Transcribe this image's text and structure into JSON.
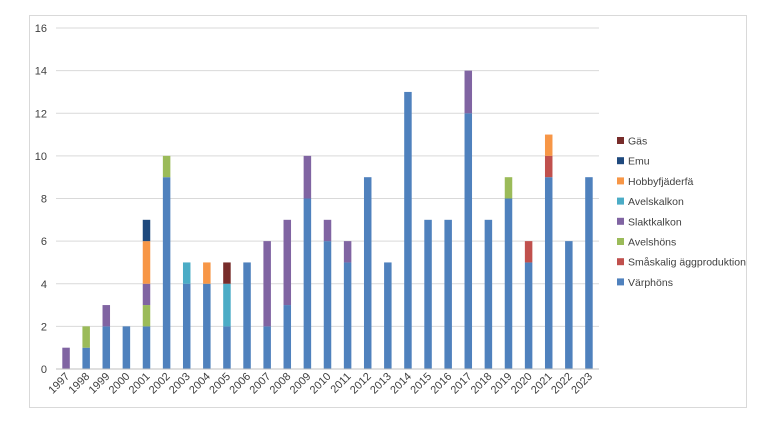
{
  "chart_data": {
    "type": "bar",
    "stacked": true,
    "categories": [
      "1997",
      "1998",
      "1999",
      "2000",
      "2001",
      "2002",
      "2003",
      "2004",
      "2005",
      "2006",
      "2007",
      "2008",
      "2009",
      "2010",
      "2011",
      "2012",
      "2013",
      "2014",
      "2015",
      "2016",
      "2017",
      "2018",
      "2019",
      "2020",
      "2021",
      "2022",
      "2023"
    ],
    "ylim": [
      0,
      16
    ],
    "yticks": [
      "0",
      "2",
      "4",
      "6",
      "8",
      "10",
      "12",
      "14",
      "16"
    ],
    "grid": true,
    "legend_position": "right",
    "series": [
      {
        "name": "Värphöns",
        "color": "#4f81bd",
        "values": [
          0,
          1,
          2,
          2,
          2,
          9,
          4,
          4,
          2,
          5,
          2,
          3,
          8,
          6,
          5,
          9,
          5,
          13,
          7,
          7,
          12,
          7,
          8,
          5,
          9,
          6,
          9
        ]
      },
      {
        "name": "Småskalig äggproduktion",
        "color": "#c0504d",
        "values": [
          0,
          0,
          0,
          0,
          0,
          0,
          0,
          0,
          0,
          0,
          0,
          0,
          0,
          0,
          0,
          0,
          0,
          0,
          0,
          0,
          0,
          0,
          0,
          1,
          1,
          0,
          0
        ]
      },
      {
        "name": "Avelshöns",
        "color": "#9bbb59",
        "values": [
          0,
          1,
          0,
          0,
          1,
          1,
          0,
          0,
          0,
          0,
          0,
          0,
          0,
          0,
          0,
          0,
          0,
          0,
          0,
          0,
          0,
          0,
          1,
          0,
          0,
          0,
          0
        ]
      },
      {
        "name": "Slaktkalkon",
        "color": "#8064a2",
        "values": [
          1,
          0,
          1,
          0,
          1,
          0,
          0,
          0,
          0,
          0,
          4,
          4,
          2,
          1,
          1,
          0,
          0,
          0,
          0,
          0,
          2,
          0,
          0,
          0,
          0,
          0,
          0
        ]
      },
      {
        "name": "Avelskalkon",
        "color": "#4bacc6",
        "values": [
          0,
          0,
          0,
          0,
          0,
          0,
          1,
          0,
          2,
          0,
          0,
          0,
          0,
          0,
          0,
          0,
          0,
          0,
          0,
          0,
          0,
          0,
          0,
          0,
          0,
          0,
          0
        ]
      },
      {
        "name": "Hobbyfjäderfä",
        "color": "#f79646",
        "values": [
          0,
          0,
          0,
          0,
          2,
          0,
          0,
          1,
          0,
          0,
          0,
          0,
          0,
          0,
          0,
          0,
          0,
          0,
          0,
          0,
          0,
          0,
          0,
          0,
          1,
          0,
          0
        ]
      },
      {
        "name": "Emu",
        "color": "#1f497d",
        "values": [
          0,
          0,
          0,
          0,
          1,
          0,
          0,
          0,
          0,
          0,
          0,
          0,
          0,
          0,
          0,
          0,
          0,
          0,
          0,
          0,
          0,
          0,
          0,
          0,
          0,
          0,
          0
        ]
      },
      {
        "name": "Gäs",
        "color": "#772c2a",
        "values": [
          0,
          0,
          0,
          0,
          0,
          0,
          0,
          0,
          1,
          0,
          0,
          0,
          0,
          0,
          0,
          0,
          0,
          0,
          0,
          0,
          0,
          0,
          0,
          0,
          0,
          0,
          0
        ]
      }
    ],
    "legend_order": [
      "Gäs",
      "Emu",
      "Hobbyfjäderfä",
      "Avelskalkon",
      "Slaktkalkon",
      "Avelshöns",
      "Småskalig äggproduktion",
      "Värphöns"
    ]
  }
}
